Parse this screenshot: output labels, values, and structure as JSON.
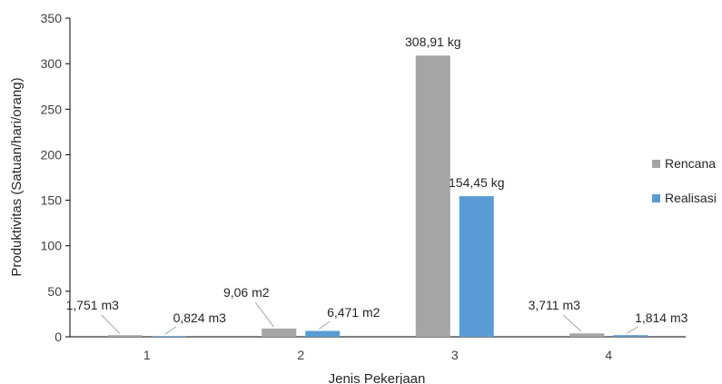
{
  "chart_data": {
    "type": "bar",
    "title": "",
    "xlabel": "Jenis Pekerjaan",
    "ylabel": "Produktivitas (Satuan/hari/orang)",
    "ylim": [
      0,
      350
    ],
    "yticks": [
      0,
      50,
      100,
      150,
      200,
      250,
      300,
      350
    ],
    "categories": [
      "1",
      "2",
      "3",
      "4"
    ],
    "grid": false,
    "legend_position": "right",
    "series": [
      {
        "name": "Rencana",
        "color": "#A5A5A5",
        "values": [
          1.751,
          9.06,
          308.91,
          3.711
        ],
        "labels": [
          "1,751 m3",
          "9,06 m2",
          "308,91 kg",
          "3,711 m3"
        ]
      },
      {
        "name": "Realisasi",
        "color": "#5B9BD5",
        "values": [
          0.824,
          6.471,
          154.45,
          1.814
        ],
        "labels": [
          "0,824 m3",
          "6,471 m2",
          "154,45 kg",
          "1,814 m3"
        ]
      }
    ]
  }
}
